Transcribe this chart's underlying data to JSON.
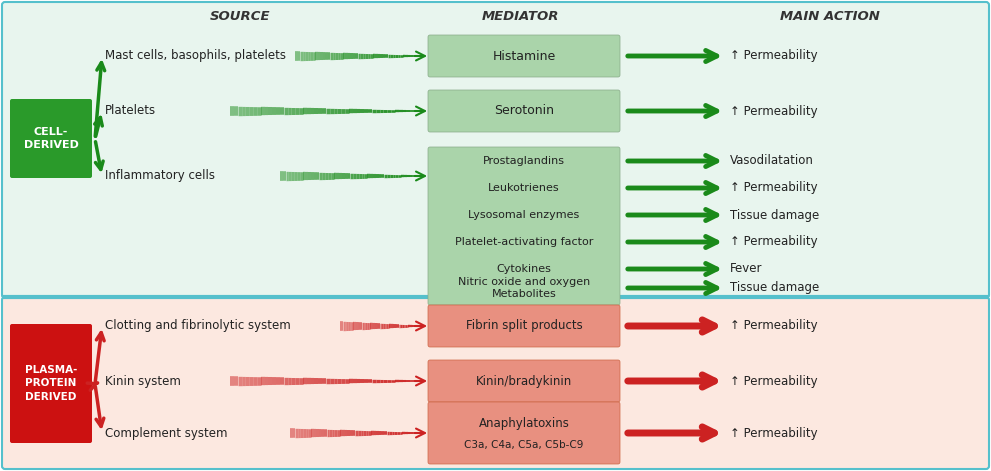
{
  "top_bg": "#e8f5ee",
  "bottom_bg": "#fce8e0",
  "divider_color": "#55c0cc",
  "cell_derived_bg": "#2a9a2a",
  "plasma_derived_bg": "#cc1111",
  "header_color": "#333333",
  "col_source": "SOURCE",
  "col_mediator": "MEDIATOR",
  "col_action": "MAIN ACTION",
  "green_arrow": "#1a8a1a",
  "red_arrow": "#cc2222",
  "mediator_box_green": "#aad4aa",
  "mediator_box_red": "#e89080",
  "green_sources": [
    "Mast cells, basophils, platelets",
    "Platelets",
    "Inflammatory cells"
  ],
  "green_mediators_boxed": [
    "Histamine",
    "Serotonin"
  ],
  "green_mediators_large": [
    "Prostaglandins",
    "Leukotrienes",
    "Lysosomal enzymes",
    "Platelet-activating factor",
    "Cytokines",
    "Nitric oxide and oxygen\nMetabolites"
  ],
  "green_actions": [
    "↑ Permeability",
    "↑ Permeability",
    "Vasodilatation",
    "↑ Permeability",
    "Tissue damage",
    "↑ Permeability",
    "Fever",
    "Tissue damage"
  ],
  "red_sources": [
    "Clotting and fibrinolytic system",
    "Kinin system",
    "Complement system"
  ],
  "red_mediators": [
    "Fibrin split products",
    "Kinin/bradykinin",
    "Anaphylatoxins\nC3a, C4a, C5a, C5b-C9"
  ],
  "red_actions": [
    "↑ Permeability",
    "↑ Permeability",
    "↑ Permeability"
  ],
  "fig_width": 9.91,
  "fig_height": 4.71,
  "dpi": 100
}
